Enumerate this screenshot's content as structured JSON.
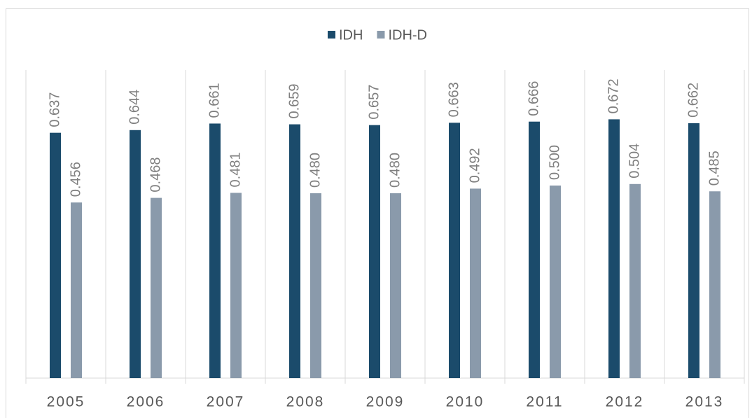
{
  "chart_data": {
    "type": "bar",
    "categories": [
      "2005",
      "2006",
      "2007",
      "2008",
      "2009",
      "2010",
      "2011",
      "2012",
      "2013"
    ],
    "series": [
      {
        "name": "IDH",
        "color": "#1b4b6b",
        "values": [
          0.637,
          0.644,
          0.661,
          0.659,
          0.657,
          0.663,
          0.666,
          0.672,
          0.662
        ],
        "value_labels": [
          "0.637",
          "0.644",
          "0.661",
          "0.659",
          "0.657",
          "0.663",
          "0.666",
          "0.672",
          "0.662"
        ]
      },
      {
        "name": "IDH-D",
        "color": "#8a9aab",
        "values": [
          0.456,
          0.468,
          0.481,
          0.48,
          0.48,
          0.492,
          0.5,
          0.504,
          0.485
        ],
        "value_labels": [
          "0.456",
          "0.468",
          "0.481",
          "0.480",
          "0.480",
          "0.492",
          "0.500",
          "0.504",
          "0.485"
        ]
      }
    ],
    "ylim": [
      0,
      0.8
    ],
    "legend": "top"
  }
}
